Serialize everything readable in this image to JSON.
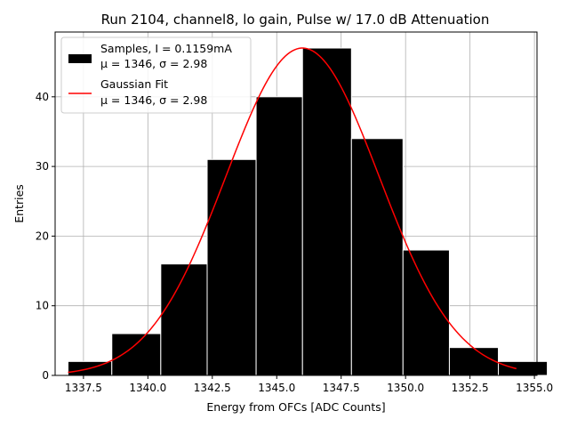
{
  "chart_data": {
    "type": "bar",
    "title": "Run 2104, channel8, lo gain, Pulse w/ 17.0 dB Attenuation",
    "xlabel": "Energy from OFCs [ADC Counts]",
    "ylabel": "Entries",
    "xlim": [
      1336.4,
      1355.1
    ],
    "ylim": [
      0,
      49.3
    ],
    "grid": true,
    "legend_position": "top-left",
    "xticks": [
      1337.5,
      1340.0,
      1342.5,
      1345.0,
      1347.5,
      1350.0,
      1352.5,
      1355.0
    ],
    "yticks": [
      0,
      10,
      20,
      30,
      40
    ],
    "histogram": {
      "name": "Samples, I = 0.1159mA",
      "stats_label": "μ = 1346, σ = 2.98",
      "color": "#000000",
      "edge_color": "#ffffff",
      "bins": [
        {
          "start": 1336.9,
          "end": 1338.6,
          "count": 2
        },
        {
          "start": 1338.6,
          "end": 1340.5,
          "count": 6
        },
        {
          "start": 1340.5,
          "end": 1342.3,
          "count": 16
        },
        {
          "start": 1342.3,
          "end": 1344.2,
          "count": 31
        },
        {
          "start": 1344.2,
          "end": 1346.0,
          "count": 40
        },
        {
          "start": 1346.0,
          "end": 1347.9,
          "count": 47
        },
        {
          "start": 1347.9,
          "end": 1349.9,
          "count": 34
        },
        {
          "start": 1349.9,
          "end": 1351.7,
          "count": 18
        },
        {
          "start": 1351.7,
          "end": 1353.6,
          "count": 4
        },
        {
          "start": 1353.6,
          "end": 1355.5,
          "count": 2
        }
      ]
    },
    "fit": {
      "name": "Gaussian Fit",
      "stats_label": "μ = 1346, σ = 2.98",
      "color": "#ff0000",
      "mu": 1346.0,
      "sigma": 2.98,
      "amplitude": 47.0,
      "x_range": [
        1336.9,
        1354.3
      ]
    }
  }
}
